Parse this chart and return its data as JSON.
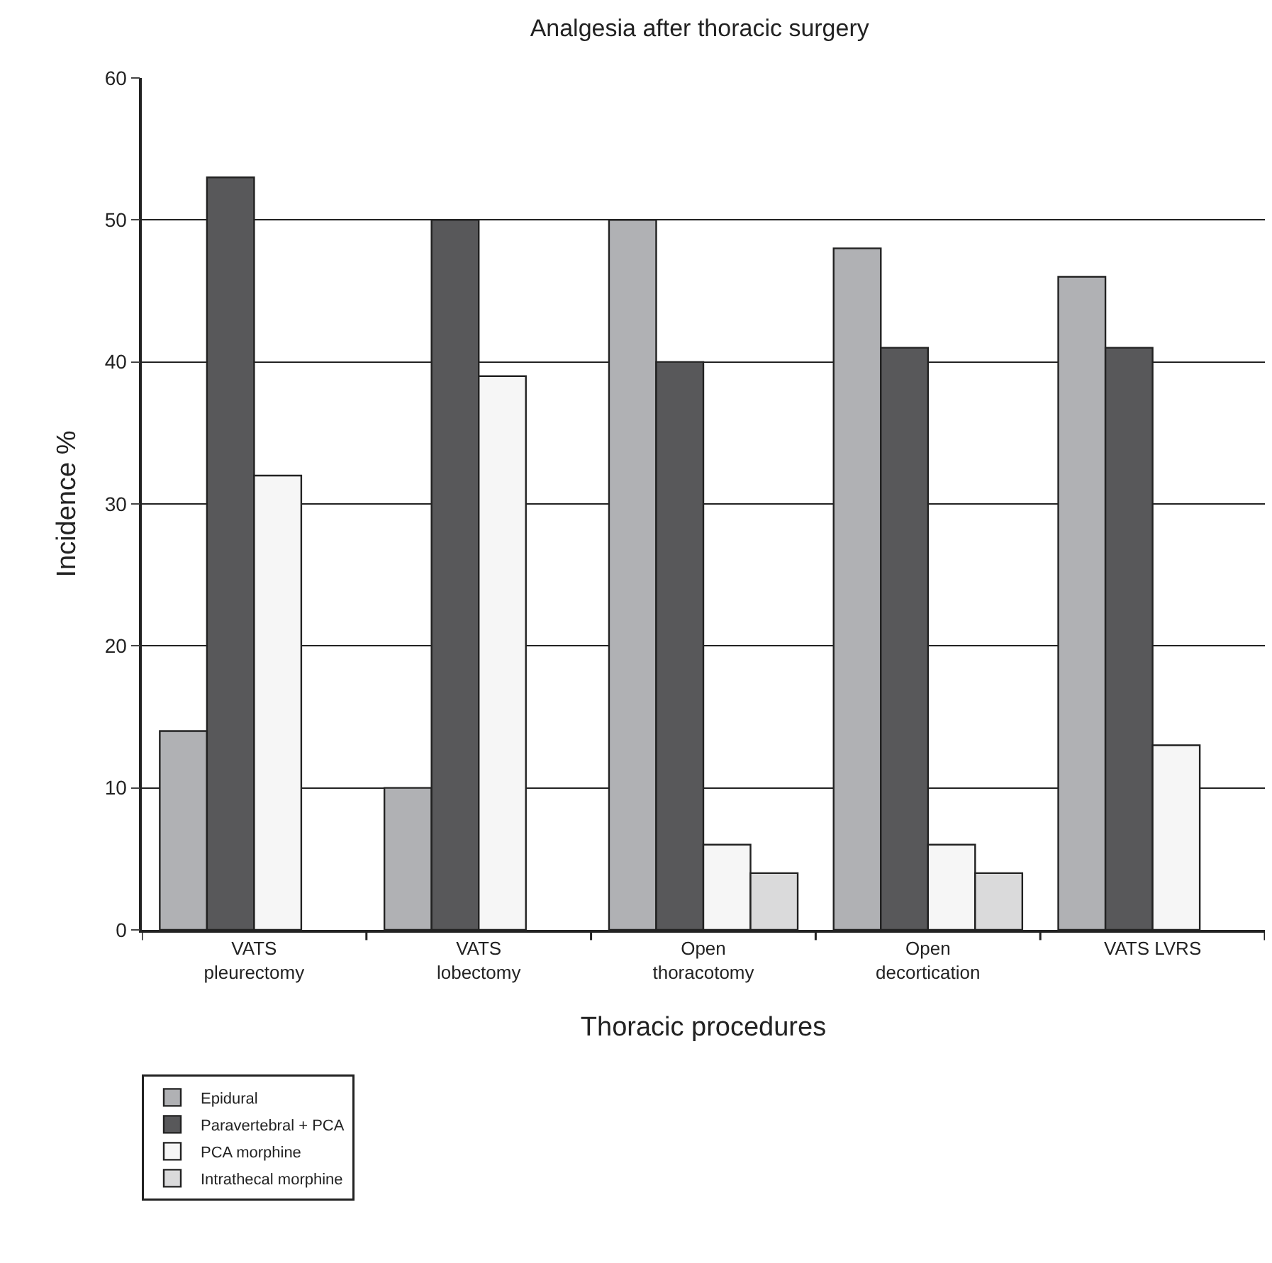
{
  "chart_data": {
    "type": "bar",
    "title": "Analgesia after thoracic surgery",
    "xlabel": "Thoracic procedures",
    "ylabel": "Incidence %",
    "categories": [
      "VATS\npleurectomy",
      "VATS\nlobectomy",
      "Open\nthoracotomy",
      "Open\ndecortication",
      "VATS LVRS"
    ],
    "series": [
      {
        "name": "Epidural",
        "color": "#b0b1b4",
        "values": [
          14,
          10,
          50,
          48,
          46
        ]
      },
      {
        "name": "Paravertebral + PCA",
        "color": "#58585a",
        "values": [
          53,
          50,
          40,
          41,
          41
        ]
      },
      {
        "name": "PCA morphine",
        "color": "#f6f6f6",
        "values": [
          32,
          39,
          6,
          6,
          13
        ]
      },
      {
        "name": "Intrathecal morphine",
        "color": "#dadadb",
        "values": [
          null,
          null,
          4,
          4,
          null
        ]
      }
    ],
    "ylim": [
      0,
      60
    ],
    "yticks": [
      0,
      10,
      20,
      30,
      40,
      50,
      60
    ],
    "grid": "y",
    "legend": "bottom left"
  }
}
